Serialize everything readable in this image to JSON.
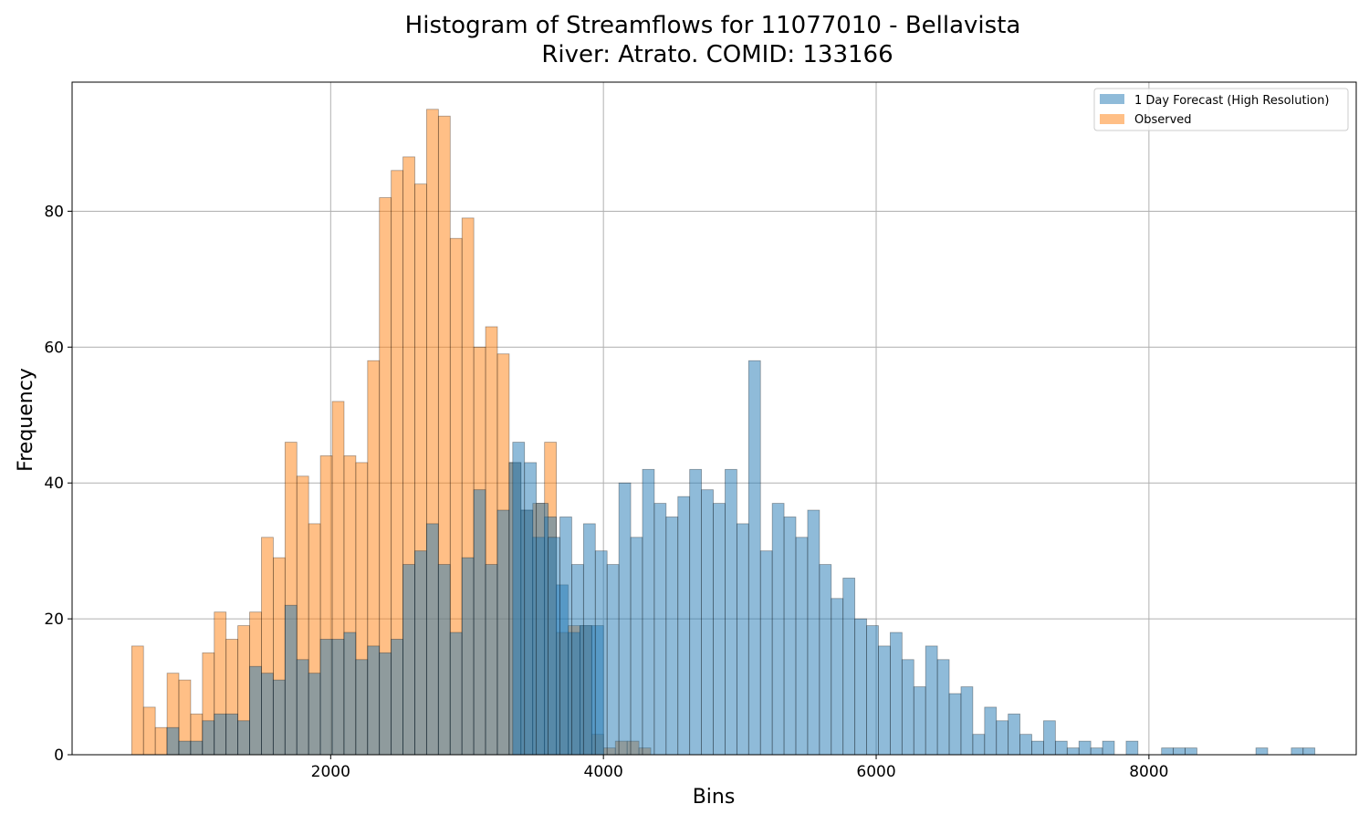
{
  "chart_data": {
    "type": "bar",
    "title_line1": "Histogram of Streamflows for 11077010 - Bellavista",
    "title_line2": "River: Atrato. COMID: 133166",
    "xlabel": "Bins",
    "ylabel": "Frequency",
    "xlim": [
      104,
      9520
    ],
    "ylim": [
      0,
      99
    ],
    "xticks": [
      2000,
      4000,
      6000,
      8000
    ],
    "yticks": [
      0,
      20,
      40,
      60,
      80
    ],
    "bin_width": 86.5,
    "grid": true,
    "legend_position": "top-right",
    "series": [
      {
        "name": "1 Day Forecast (High Resolution)",
        "color": "#1f77b4",
        "opacity": 0.5,
        "bin_start": 4000,
        "values": [
          3,
          1,
          2,
          2,
          1
        ]
      },
      {
        "name": "Observed",
        "color": "#ff7f0e",
        "opacity": 0.5,
        "bin_start": 541,
        "values": [
          16,
          7,
          4,
          12,
          11,
          6,
          15,
          21,
          17,
          19,
          21,
          32,
          29,
          46,
          41,
          34,
          44,
          52,
          44,
          43,
          58,
          82,
          86,
          88,
          84,
          95,
          94,
          76,
          79,
          60,
          63,
          59,
          43,
          36,
          37,
          46,
          18,
          19,
          19,
          3,
          1,
          2,
          2,
          1
        ]
      }
    ],
    "forecast_overlap": {
      "bin_start": 800,
      "values": [
        4,
        2,
        2,
        5,
        6,
        6,
        5,
        13,
        12,
        11,
        22,
        14,
        12,
        17,
        17,
        18,
        14,
        16,
        15,
        17,
        28,
        30,
        34,
        28,
        18,
        29,
        39,
        28,
        36,
        43,
        36,
        32,
        35,
        25,
        18,
        19,
        19
      ]
    },
    "forecast_main": {
      "bin_start": 3335,
      "values": [
        46,
        43,
        37,
        32,
        35,
        28,
        34,
        30,
        28,
        40,
        32,
        42,
        37,
        35,
        38,
        42,
        39,
        37,
        42,
        34,
        58,
        30,
        37,
        35,
        32,
        36,
        28,
        23,
        26,
        20,
        19,
        16,
        18,
        14,
        10,
        16,
        14,
        9,
        10,
        3,
        7,
        5,
        6,
        3,
        2,
        5,
        2,
        1,
        2,
        1,
        2,
        0,
        2,
        0,
        0,
        1,
        1,
        1,
        0,
        0,
        0,
        0,
        0,
        1,
        0,
        0,
        1,
        1
      ]
    }
  }
}
